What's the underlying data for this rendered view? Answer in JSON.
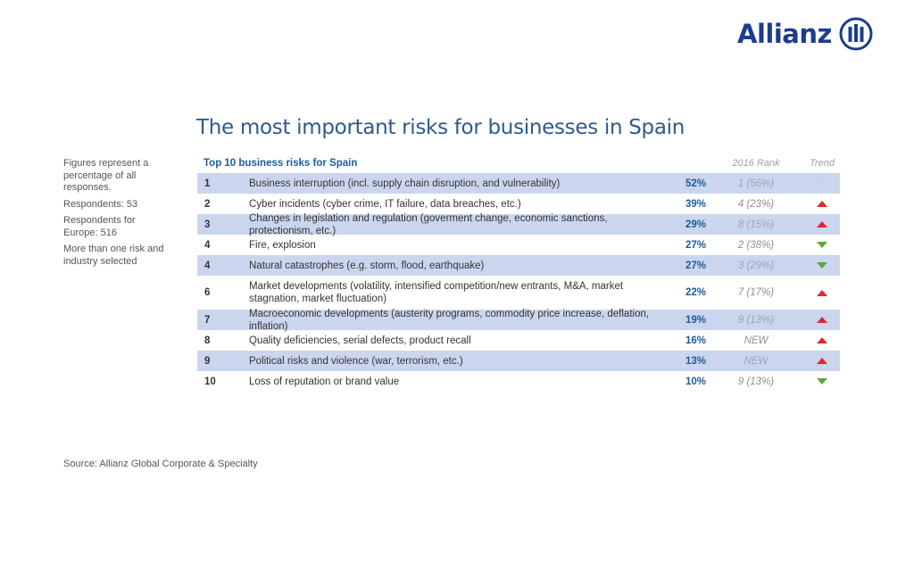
{
  "brand": {
    "name": "Allianz",
    "color": "#1d3d8f"
  },
  "title": "The most important risks for businesses in Spain",
  "notes": [
    "Figures represent a percentage of all responses.",
    "Respondents: 53",
    "Respondents for Europe: 516",
    "More than one risk and industry selected"
  ],
  "table": {
    "caption": "Top 10 business risks for Spain",
    "rank_header": "2016 Rank",
    "trend_header": "Trend",
    "rows": [
      {
        "rank": "1",
        "risk": "Business interruption (incl. supply chain disruption, and vulnerability)",
        "percent": "52%",
        "rank_2016": "1 (56%)",
        "trend": "none",
        "trend_label": "-"
      },
      {
        "rank": "2",
        "risk": "Cyber incidents (cyber crime, IT failure, data breaches, etc.)",
        "percent": "39%",
        "rank_2016": "4 (23%)",
        "trend": "up"
      },
      {
        "rank": "3",
        "risk": "Changes in legislation and regulation (goverment change, economic sanctions, protectionism, etc.)",
        "percent": "29%",
        "rank_2016": "8 (15%)",
        "trend": "up"
      },
      {
        "rank": "4",
        "risk": "Fire, explosion",
        "percent": "27%",
        "rank_2016": "2 (38%)",
        "trend": "down"
      },
      {
        "rank": "4",
        "risk": "Natural catastrophes (e.g. storm, flood, earthquake)",
        "percent": "27%",
        "rank_2016": "3 (29%)",
        "trend": "down"
      },
      {
        "rank": "6",
        "risk": "Market developments (volatility, intensified competition/new entrants, M&A, market stagnation, market fluctuation)",
        "percent": "22%",
        "rank_2016": "7 (17%)",
        "trend": "up"
      },
      {
        "rank": "7",
        "risk": "Macroeconomic developments (austerity programs, commodity price increase, deflation, inflation)",
        "percent": "19%",
        "rank_2016": "9 (13%)",
        "trend": "up"
      },
      {
        "rank": "8",
        "risk": "Quality deficiencies, serial defects, product recall",
        "percent": "16%",
        "rank_2016": "NEW",
        "trend": "up"
      },
      {
        "rank": "9",
        "risk": "Political risks and violence (war, terrorism, etc.)",
        "percent": "13%",
        "rank_2016": "NEW",
        "trend": "up"
      },
      {
        "rank": "10",
        "risk": "Loss of reputation or brand value",
        "percent": "10%",
        "rank_2016": "9 (13%)",
        "trend": "down"
      }
    ]
  },
  "colors": {
    "row_shade": "#cbd6ee",
    "trend_up": "#e0282e",
    "trend_down": "#5ca833",
    "accent": "#1f5a9b"
  },
  "source": "Source: Allianz Global Corporate & Specialty"
}
